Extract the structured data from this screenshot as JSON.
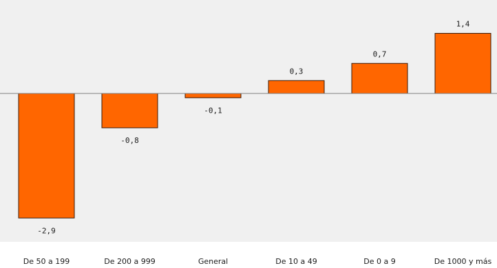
{
  "chart_data": {
    "type": "bar",
    "categories": [
      "De 50 a 199",
      "De 200 a 999",
      "General",
      "De 10 a 49",
      "De 0 a 9",
      "De 1000 y más"
    ],
    "value_labels": [
      "-2,9",
      "-0,8",
      "-0,1",
      "0,3",
      "0,7",
      "1,4"
    ],
    "values": [
      -2.9,
      -0.8,
      -0.1,
      0.3,
      0.7,
      1.4
    ],
    "ylim": [
      -3.5,
      2.0
    ],
    "grid": false,
    "legend": "none",
    "title": "",
    "xlabel": "",
    "ylabel": "",
    "colors": {
      "bar": "#ff6600",
      "bar_border": "#3a1a08",
      "plot_background": "#f0f0f0",
      "zero_line": "#7f7f7f"
    }
  }
}
